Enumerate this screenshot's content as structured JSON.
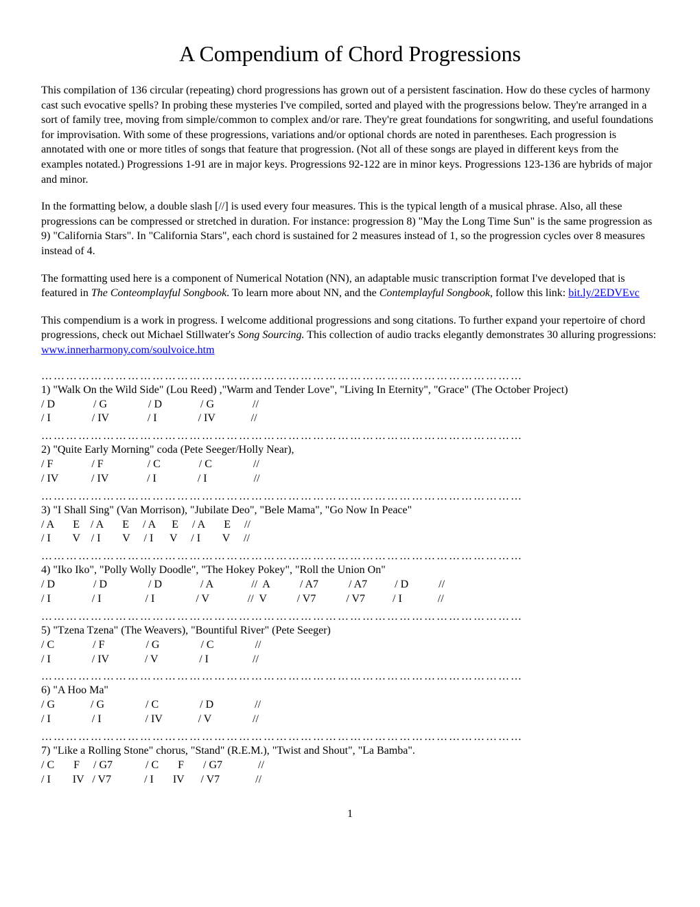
{
  "title": "A Compendium of Chord Progressions",
  "para1": "This compilation of 136 circular (repeating) chord progressions has grown out of a persistent fascination. How do these cycles of harmony cast such evocative spells? In probing these mysteries I've compiled, sorted and played with the progressions below. They're arranged in a sort of family tree, moving from simple/common to complex and/or rare. They're great foundations for songwriting, and useful foundations for improvisation. With some of these progressions, variations and/or optional chords are noted in parentheses. Each progression is annotated with one or more titles of songs that feature that progression. (Not all of these songs are played in different keys from the examples notated.) Progressions 1-91 are in major keys. Progressions 92-122 are in minor keys. Progressions 123-136 are hybrids of major and minor.",
  "para2": "In the formatting below, a double slash [//] is used every four measures. This is the typical length of a musical phrase. Also, all these progressions can be compressed or stretched in duration. For instance: progression 8) \"May the Long Time Sun\" is the same progression as 9) \"California Stars\". In \"California Stars\", each chord is sustained for 2 measures instead of 1, so the progression cycles over 8 measures instead of 4.",
  "para3a": "The formatting used here is a component of Numerical Notation (NN), an adaptable music transcription format I've developed that is featured in ",
  "para3_italic1": "The Conteomplayful Songbook",
  "para3b": ". To learn more about NN, and the ",
  "para3_italic2": "Contemplayful Songbook",
  "para3c": ", follow this link: ",
  "link1_text": "bit.ly/2EDVEvc",
  "para4a": "This compendium is a work in progress. I welcome additional progressions and song citations. To further expand your repertoire of chord progressions, check out Michael Stillwater's ",
  "para4_italic": "Song Sourcing.",
  "para4b": " This collection of audio tracks elegantly demonstrates 30 alluring progressions: ",
  "link2_text": "www.innerharmony.com/soulvoice.htm",
  "dots": "………………………………………………………………………………………………………",
  "progressions": [
    {
      "title": "1) \"Walk On the Wild Side\" (Lou Reed) ,\"Warm and Tender Love\", \"Living In Eternity\", \"Grace\" (The October Project)",
      "line1": "/ D              / G               / D              / G              //",
      "line2": "/ I               / IV              / I               / IV             //"
    },
    {
      "title": "2) \"Quite Early Morning\" coda (Pete Seeger/Holly Near),",
      "line1": "/ F              / F                / C              / C               //",
      "line2": "/ IV            / IV              / I               / I                 //"
    },
    {
      "title": "3) \"I Shall Sing\" (Van Morrison), \"Jubilate Deo\", \"Bele Mama\", \"Go Now In Peace\"",
      "line1": "/ A       E    / A       E     / A      E     / A       E     //",
      "line2": "/ I        V    / I        V     / I      V     / I        V     //"
    },
    {
      "title": "4) \"Iko Iko\", \"Polly Wolly Doodle\", \"The Hokey Pokey\", \"Roll the Union On\"",
      "line1": "/ D              / D               / D              / A              //  A           / A7           / A7          / D           //",
      "line2": "/ I               / I                / I               / V              //  V           / V7           / V7          / I             //"
    },
    {
      "title": "5)  \"Tzena Tzena\" (The Weavers),  \"Bountiful River\"  (Pete Seeger)",
      "line1": "/ C              / F               / G               / C               //",
      "line2": "/ I               / IV             / V               / I                //"
    },
    {
      "title": "6) \"A Hoo Ma\"",
      "line1": "/ G             / G               / C               / D               //",
      "line2": "/ I               / I                / IV             / V               //"
    },
    {
      "title": "7)  \"Like a Rolling Stone\" chorus, \"Stand\" (R.E.M.), \"Twist and Shout\",  \"La Bamba\".",
      "line1": "/ C       F     / G7            / C       F       / G7             //",
      "line2": "/ I        IV   / V7            / I       IV      / V7             //"
    }
  ],
  "page_number": "1"
}
